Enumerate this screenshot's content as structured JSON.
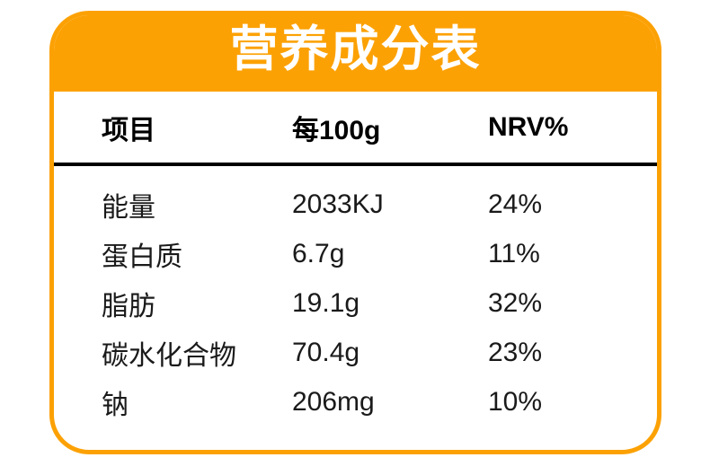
{
  "card": {
    "title": "营养成分表",
    "colors": {
      "accent": "#FCA104",
      "title_text": "#FFFFFF",
      "body_text": "#1a1a1a",
      "divider": "#000000",
      "background": "#FFFFFF"
    }
  },
  "table": {
    "headers": {
      "item": "项目",
      "per100g": "每100g",
      "nrv": "NRV%"
    },
    "rows": [
      {
        "item": "能量",
        "per100g": "2033KJ",
        "nrv": "24%"
      },
      {
        "item": "蛋白质",
        "per100g": "6.7g",
        "nrv": "11%"
      },
      {
        "item": "脂肪",
        "per100g": "19.1g",
        "nrv": "32%"
      },
      {
        "item": "碳水化合物",
        "per100g": "70.4g",
        "nrv": "23%"
      },
      {
        "item": "钠",
        "per100g": "206mg",
        "nrv": "10%"
      }
    ]
  },
  "chart_data": {
    "type": "table",
    "title": "营养成分表",
    "columns": [
      "项目",
      "每100g",
      "NRV%"
    ],
    "rows": [
      [
        "能量",
        "2033KJ",
        "24%"
      ],
      [
        "蛋白质",
        "6.7g",
        "11%"
      ],
      [
        "脂肪",
        "19.1g",
        "32%"
      ],
      [
        "碳水化合物",
        "70.4g",
        "23%"
      ],
      [
        "钠",
        "206mg",
        "10%"
      ]
    ]
  }
}
